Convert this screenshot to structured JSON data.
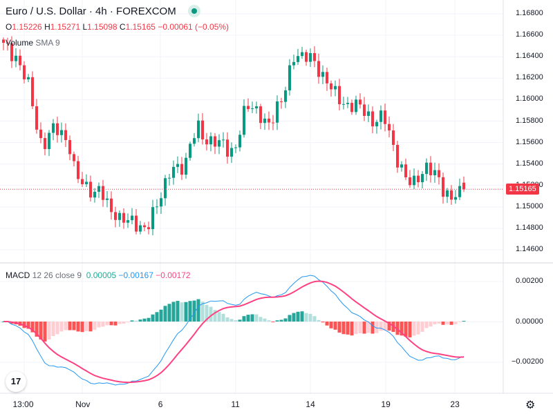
{
  "header": {
    "title": "Euro / U.S. Dollar · 4h · FOREXCOM",
    "status": "market-open"
  },
  "ohlc": {
    "o_label": "O",
    "o": "1.15226",
    "h_label": "H",
    "h": "1.15271",
    "l_label": "L",
    "l": "1.15098",
    "c_label": "C",
    "c": "1.15165",
    "change": "−0.00061 (−0.05%)"
  },
  "volume": {
    "label": "Volume",
    "sma": "SMA 9"
  },
  "macd": {
    "label": "MACD",
    "params": "12 26 close 9",
    "hist": "0.00005",
    "macd": "−0.00167",
    "signal": "−0.00172"
  },
  "price_axis": [
    "1.16800",
    "1.16600",
    "1.16400",
    "1.16200",
    "1.16000",
    "1.15800",
    "1.15600",
    "1.15400",
    "1.15200",
    "1.15000",
    "1.14800",
    "1.14600"
  ],
  "current_price": "1.15165",
  "macd_axis": [
    "0.00200",
    "0.00000",
    "−0.00200"
  ],
  "time_axis": [
    "13:00",
    "Nov",
    "6",
    "11",
    "14",
    "19",
    "23"
  ],
  "logo": "TV",
  "colors": {
    "up": "#089981",
    "down": "#f23645",
    "macd": "#2962ff",
    "signal": "#ff4081"
  },
  "chart_data": {
    "type": "candlestick",
    "title": "Euro / U.S. Dollar · 4h · FOREXCOM",
    "ylim": [
      1.146,
      1.168
    ],
    "close_waypoints": [
      1.165,
      1.1645,
      1.164,
      1.1625,
      1.161,
      1.158,
      1.1555,
      1.1565,
      1.1575,
      1.157,
      1.156,
      1.153,
      1.1525,
      1.152,
      1.151,
      1.1515,
      1.1505,
      1.1495,
      1.1485,
      1.1488,
      1.149,
      1.148,
      1.1475,
      1.1495,
      1.151,
      1.152,
      1.1535,
      1.1538,
      1.154,
      1.156,
      1.1575,
      1.1565,
      1.156,
      1.1558,
      1.156,
      1.1552,
      1.1555,
      1.1585,
      1.16,
      1.159,
      1.1578,
      1.1575,
      1.1595,
      1.16,
      1.162,
      1.1645,
      1.1642,
      1.164,
      1.1632,
      1.1625,
      1.1618,
      1.1605,
      1.1598,
      1.1596,
      1.1595,
      1.1592,
      1.1588,
      1.158,
      1.1582,
      1.158,
      1.156,
      1.154,
      1.1525,
      1.1522,
      1.153,
      1.1535,
      1.1532,
      1.153,
      1.1515,
      1.1505,
      1.1512,
      1.15165
    ]
  }
}
